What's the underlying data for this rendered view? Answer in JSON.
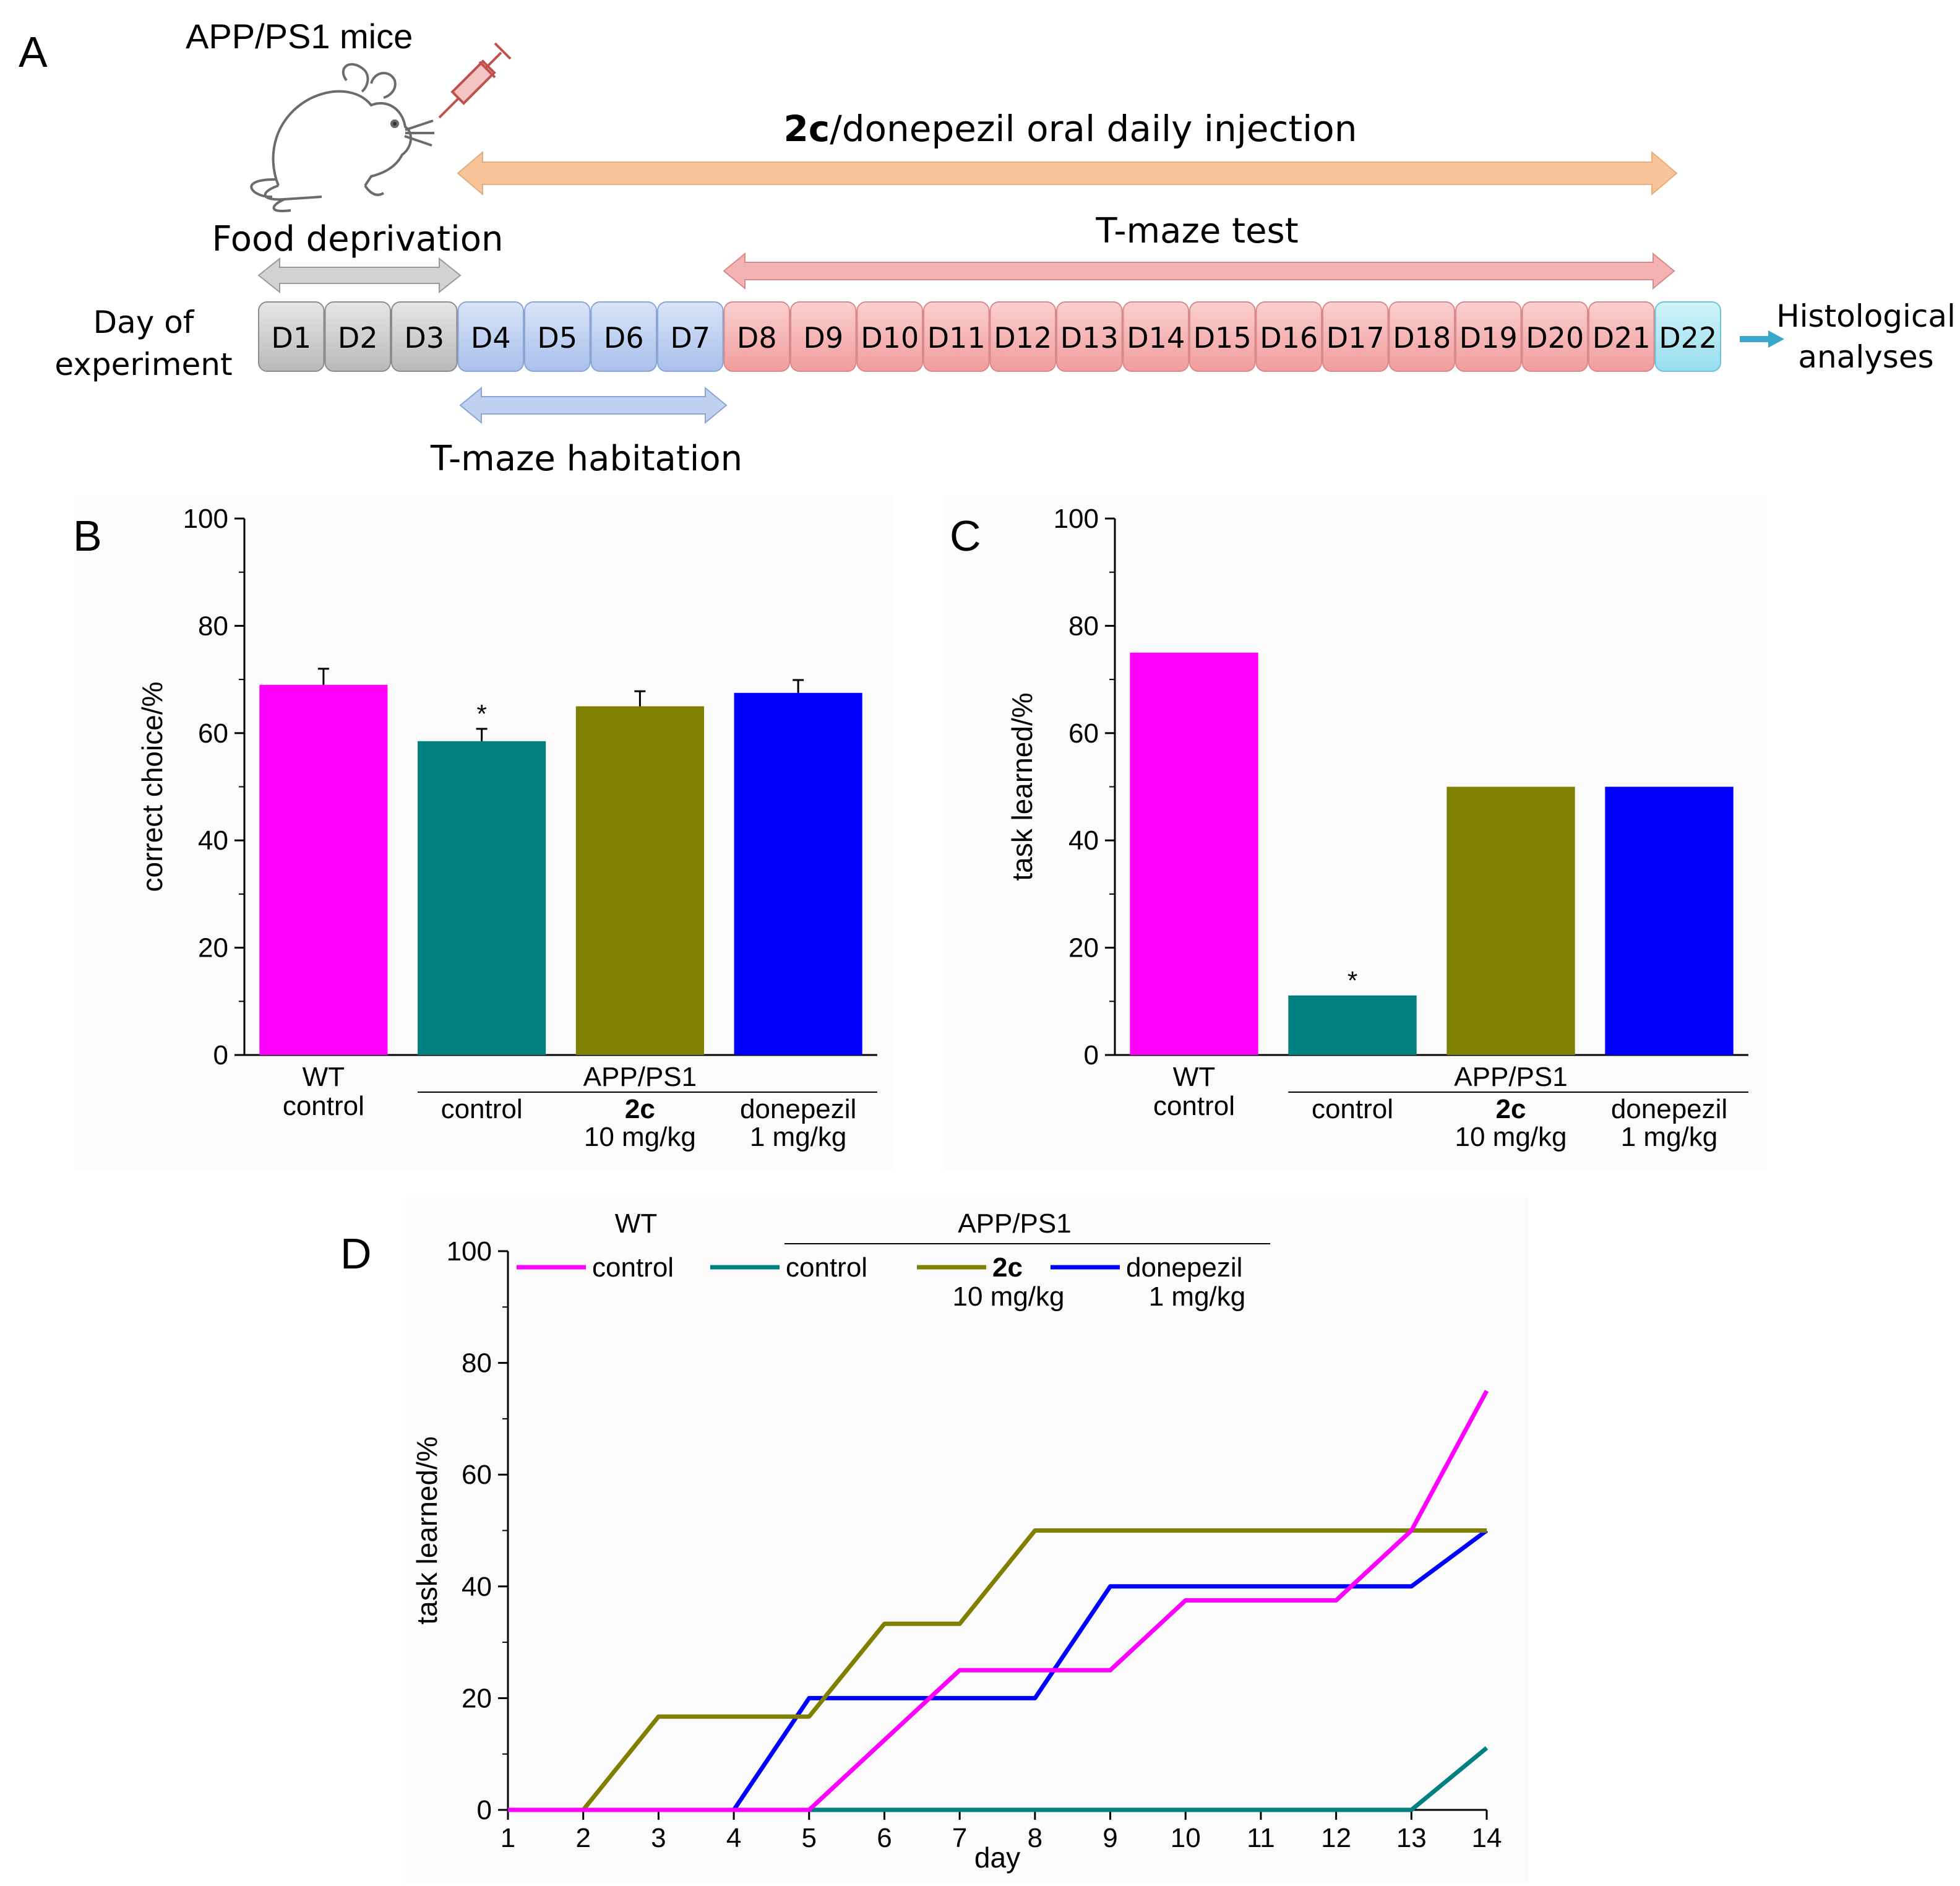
{
  "panel_a": {
    "letter": "A",
    "mice_label": "APP/PS1 mice",
    "injection_label_bold": "2c",
    "injection_label_rest": "/donepezil oral daily injection",
    "food_label": "Food deprivation",
    "tmaze_test_label": "T-maze test",
    "habitation_label": "T-maze habitation",
    "day_label_line1": "Day of",
    "day_label_line2": "experiment",
    "histo_line1": "Histological",
    "histo_line2": "analyses",
    "days": [
      "D1",
      "D2",
      "D3",
      "D4",
      "D5",
      "D6",
      "D7",
      "D8",
      "D9",
      "D10",
      "D11",
      "D12",
      "D13",
      "D14",
      "D15",
      "D16",
      "D17",
      "D18",
      "D19",
      "D20",
      "D21",
      "D22"
    ],
    "colors": {
      "food": "#c8c8c8",
      "habitation": "#b8cdf0",
      "test": "#f4a9a9",
      "final": "#a9e6f2",
      "injection_arrow": "#f7c49a",
      "test_arrow": "#f3b3b3",
      "food_arrow": "#d2d2d2",
      "habitation_arrow": "#bfd0f0",
      "histo_arrow": "#3aa6c9"
    }
  },
  "group_labels": {
    "wt": "WT",
    "wt_sub": "control",
    "app": "APP/PS1",
    "control": "control",
    "c2": "2c",
    "c2_dose": "10 mg/kg",
    "donepezil": "donepezil",
    "donepezil_dose": "1 mg/kg"
  },
  "chart_data": [
    {
      "panel": "B",
      "type": "bar",
      "ylabel": "correct choice/%",
      "ylim": [
        0,
        100
      ],
      "yticks": [
        0,
        20,
        40,
        60,
        80,
        100
      ],
      "categories": [
        "WT control",
        "APP/PS1 control",
        "APP/PS1 2c 10 mg/kg",
        "APP/PS1 donepezil 1 mg/kg"
      ],
      "values": [
        69,
        58.5,
        65,
        67.5
      ],
      "errors": [
        3,
        2.3,
        2.8,
        2.4
      ],
      "significance": [
        "",
        "*",
        "",
        ""
      ],
      "colors": [
        "#ff00ff",
        "#008080",
        "#808000",
        "#0000ff"
      ]
    },
    {
      "panel": "C",
      "type": "bar",
      "ylabel": "task learned/%",
      "ylim": [
        0,
        100
      ],
      "yticks": [
        0,
        20,
        40,
        60,
        80,
        100
      ],
      "categories": [
        "WT control",
        "APP/PS1 control",
        "APP/PS1 2c 10 mg/kg",
        "APP/PS1 donepezil 1 mg/kg"
      ],
      "values": [
        75,
        11.1,
        50,
        50
      ],
      "significance": [
        "",
        "*",
        "",
        ""
      ],
      "colors": [
        "#ff00ff",
        "#008080",
        "#808000",
        "#0000ff"
      ]
    },
    {
      "panel": "D",
      "type": "line",
      "xlabel": "day",
      "ylabel": "task learned/%",
      "xlim": [
        1,
        14
      ],
      "ylim": [
        0,
        100
      ],
      "xticks": [
        1,
        2,
        3,
        4,
        5,
        6,
        7,
        8,
        9,
        10,
        11,
        12,
        13,
        14
      ],
      "yticks": [
        0,
        20,
        40,
        60,
        80,
        100
      ],
      "x": [
        1,
        2,
        3,
        4,
        5,
        6,
        7,
        8,
        9,
        10,
        11,
        12,
        13,
        14
      ],
      "series": [
        {
          "name": "WT control",
          "color": "#ff00ff",
          "values": [
            0,
            0,
            0,
            0,
            0,
            12.5,
            25,
            25,
            25,
            37.5,
            37.5,
            37.5,
            50,
            75
          ]
        },
        {
          "name": "APP/PS1 control",
          "color": "#008080",
          "values": [
            0,
            0,
            0,
            0,
            0,
            0,
            0,
            0,
            0,
            0,
            0,
            0,
            0,
            11.1
          ]
        },
        {
          "name": "APP/PS1 2c 10 mg/kg",
          "color": "#808000",
          "values": [
            0,
            0,
            16.7,
            16.7,
            16.7,
            33.3,
            33.3,
            50,
            50,
            50,
            50,
            50,
            50,
            50
          ]
        },
        {
          "name": "APP/PS1 donepezil 1 mg/kg",
          "color": "#0000ff",
          "values": [
            0,
            0,
            0,
            0,
            20,
            20,
            20,
            20,
            40,
            40,
            40,
            40,
            40,
            50
          ]
        }
      ]
    }
  ],
  "panel_letters": {
    "b": "B",
    "c": "C",
    "d": "D"
  }
}
